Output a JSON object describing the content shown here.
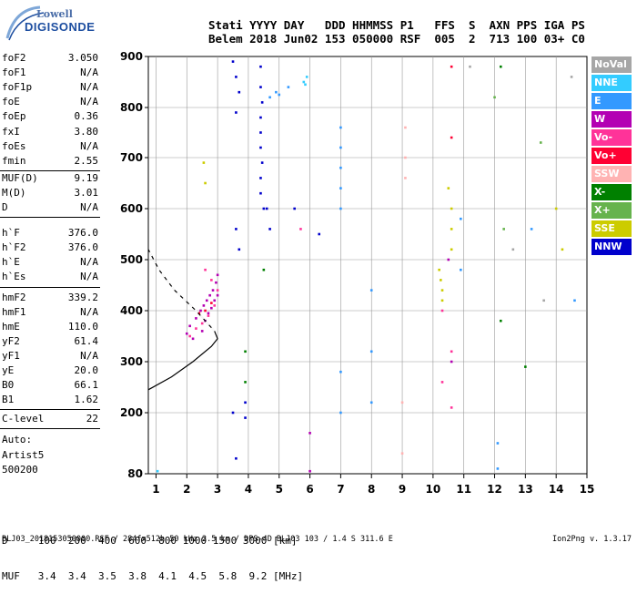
{
  "logo": {
    "line1": "Lowell",
    "line2": "DIGISONDE"
  },
  "header": {
    "line1": "Stati YYYY DAY   DDD HHMMSS P1   FFS  S  AXN PPS IGA PS",
    "line2": "Belem 2018 Jun02 153 050000 RSF  005  2  713 100 03+ C0"
  },
  "params_group1": [
    {
      "name": "foF2",
      "value": "3.050"
    },
    {
      "name": "foF1",
      "value": "N/A"
    },
    {
      "name": "foF1p",
      "value": "N/A"
    },
    {
      "name": "foE",
      "value": "N/A"
    },
    {
      "name": "foEp",
      "value": "0.36"
    },
    {
      "name": "fxI",
      "value": "3.80"
    },
    {
      "name": "foEs",
      "value": "N/A"
    },
    {
      "name": "fmin",
      "value": "2.55"
    }
  ],
  "params_group2": [
    {
      "name": "MUF(D)",
      "value": "9.19"
    },
    {
      "name": "M(D)",
      "value": "3.01"
    },
    {
      "name": "D",
      "value": "N/A"
    }
  ],
  "params_group3": [
    {
      "name": "h`F",
      "value": "376.0"
    },
    {
      "name": "h`F2",
      "value": "376.0"
    },
    {
      "name": "h`E",
      "value": "N/A"
    },
    {
      "name": "h`Es",
      "value": "N/A"
    }
  ],
  "params_group4": [
    {
      "name": "hmF2",
      "value": "339.2"
    },
    {
      "name": "hmF1",
      "value": "N/A"
    },
    {
      "name": "hmE",
      "value": "110.0"
    },
    {
      "name": "yF2",
      "value": "61.4"
    },
    {
      "name": "yF1",
      "value": "N/A"
    },
    {
      "name": "yE",
      "value": "20.0"
    },
    {
      "name": "B0",
      "value": "66.1"
    },
    {
      "name": "B1",
      "value": "1.62"
    }
  ],
  "clevel": {
    "name": "C-level",
    "value": "22"
  },
  "autoscaling": {
    "line1": "Auto:",
    "line2": "Artist5",
    "line3": "500200"
  },
  "legend": [
    {
      "label": "NoVal",
      "color": "#a6a6a6"
    },
    {
      "label": "NNE",
      "color": "#33ccff"
    },
    {
      "label": "E",
      "color": "#3399ff"
    },
    {
      "label": "W",
      "color": "#b300b3"
    },
    {
      "label": "Vo-",
      "color": "#ff3399"
    },
    {
      "label": "Vo+",
      "color": "#ff0033"
    },
    {
      "label": "SSW",
      "color": "#ffb3b3"
    },
    {
      "label": "X-",
      "color": "#008000"
    },
    {
      "label": "X+",
      "color": "#66b34d"
    },
    {
      "label": "SSE",
      "color": "#cccc00"
    },
    {
      "label": "NNW",
      "color": "#0000cc"
    }
  ],
  "distance_table": {
    "line1": "D     100  200  400  600  800 1000 1500 3000 [km]",
    "line2": "MUF   3.4  3.4  3.5  3.8  4.1  4.5  5.8  9.2 [MHz]"
  },
  "footer": {
    "left": "BLJ03_2018153050000.RSF / 284fx512h 50 kHz 2.5 km / DPS-4D BLJ03 103 / 1.4 S 311.6 E",
    "right": "Ion2Png v. 1.3.17"
  },
  "chart_data": {
    "type": "scatter",
    "title": "",
    "xlabel": "",
    "ylabel": "",
    "x_unit": "MHz",
    "y_unit": "km",
    "xlim": [
      0.75,
      15
    ],
    "ylim": [
      80,
      900
    ],
    "x_ticks": [
      1,
      2,
      3,
      4,
      5,
      6,
      7,
      8,
      9,
      10,
      11,
      12,
      13,
      14,
      15
    ],
    "y_ticks": [
      80,
      200,
      300,
      400,
      500,
      600,
      700,
      800,
      900
    ],
    "y_scale": "reciprocal-like (ionogram)",
    "grid": true,
    "legend_position": "right",
    "series": [
      {
        "name": "W",
        "color": "#b300b3",
        "points": [
          [
            2.0,
            355
          ],
          [
            2.1,
            370
          ],
          [
            2.3,
            385
          ],
          [
            2.45,
            400
          ],
          [
            2.55,
            410
          ],
          [
            2.65,
            420
          ],
          [
            2.75,
            430
          ],
          [
            2.85,
            440
          ],
          [
            2.95,
            455
          ],
          [
            3.0,
            470
          ],
          [
            2.6,
            380
          ],
          [
            2.7,
            395
          ],
          [
            2.8,
            405
          ],
          [
            2.9,
            420
          ],
          [
            3.0,
            430
          ],
          [
            2.2,
            345
          ],
          [
            2.5,
            360
          ],
          [
            6.0,
            85
          ],
          [
            6.0,
            160
          ],
          [
            10.6,
            300
          ],
          [
            10.5,
            500
          ]
        ]
      },
      {
        "name": "Vo-",
        "color": "#ff3399",
        "points": [
          [
            2.1,
            350
          ],
          [
            2.3,
            365
          ],
          [
            2.5,
            375
          ],
          [
            2.7,
            390
          ],
          [
            2.9,
            410
          ],
          [
            3.0,
            440
          ],
          [
            2.8,
            460
          ],
          [
            2.6,
            480
          ],
          [
            10.3,
            260
          ],
          [
            10.3,
            400
          ],
          [
            10.6,
            320
          ],
          [
            10.6,
            210
          ],
          [
            5.7,
            560
          ]
        ]
      },
      {
        "name": "Vo+",
        "color": "#ff0033",
        "points": [
          [
            2.4,
            395
          ],
          [
            2.6,
            400
          ],
          [
            2.8,
            415
          ],
          [
            10.6,
            880
          ],
          [
            10.6,
            740
          ]
        ]
      },
      {
        "name": "NNW",
        "color": "#0000cc",
        "points": [
          [
            3.5,
            890
          ],
          [
            3.6,
            860
          ],
          [
            3.7,
            830
          ],
          [
            3.6,
            790
          ],
          [
            4.4,
            880
          ],
          [
            4.4,
            840
          ],
          [
            4.45,
            810
          ],
          [
            4.4,
            780
          ],
          [
            4.4,
            750
          ],
          [
            4.4,
            720
          ],
          [
            4.45,
            690
          ],
          [
            4.4,
            660
          ],
          [
            4.4,
            630
          ],
          [
            4.5,
            600
          ],
          [
            3.6,
            560
          ],
          [
            3.7,
            520
          ],
          [
            4.6,
            600
          ],
          [
            4.7,
            560
          ],
          [
            5.5,
            600
          ],
          [
            6.3,
            550
          ],
          [
            3.9,
            220
          ],
          [
            3.9,
            190
          ],
          [
            3.5,
            200
          ],
          [
            3.6,
            110
          ]
        ]
      },
      {
        "name": "E",
        "color": "#3399ff",
        "points": [
          [
            4.7,
            820
          ],
          [
            4.9,
            830
          ],
          [
            5.0,
            825
          ],
          [
            5.3,
            840
          ],
          [
            7.0,
            760
          ],
          [
            7.0,
            720
          ],
          [
            7.0,
            680
          ],
          [
            7.0,
            640
          ],
          [
            7.0,
            600
          ],
          [
            7.0,
            280
          ],
          [
            7.0,
            200
          ],
          [
            8.0,
            440
          ],
          [
            8.0,
            320
          ],
          [
            8.0,
            220
          ],
          [
            10.9,
            580
          ],
          [
            10.9,
            480
          ],
          [
            12.1,
            140
          ],
          [
            12.1,
            90
          ],
          [
            13.2,
            560
          ],
          [
            14.6,
            420
          ]
        ]
      },
      {
        "name": "NNE",
        "color": "#33ccff",
        "points": [
          [
            5.8,
            850
          ],
          [
            5.9,
            860
          ],
          [
            5.85,
            845
          ],
          [
            1.05,
            85
          ]
        ]
      },
      {
        "name": "SSW",
        "color": "#ffb3b3",
        "points": [
          [
            9.1,
            760
          ],
          [
            9.1,
            700
          ],
          [
            9.1,
            660
          ],
          [
            9.0,
            120
          ],
          [
            9.0,
            220
          ]
        ]
      },
      {
        "name": "X-",
        "color": "#008000",
        "points": [
          [
            3.9,
            260
          ],
          [
            3.9,
            320
          ],
          [
            4.5,
            480
          ],
          [
            12.2,
            880
          ],
          [
            12.2,
            380
          ],
          [
            13.0,
            290
          ]
        ]
      },
      {
        "name": "X+",
        "color": "#66b34d",
        "points": [
          [
            12.0,
            820
          ],
          [
            13.5,
            730
          ],
          [
            12.3,
            560
          ]
        ]
      },
      {
        "name": "SSE",
        "color": "#cccc00",
        "points": [
          [
            2.55,
            690
          ],
          [
            2.6,
            650
          ],
          [
            10.2,
            480
          ],
          [
            10.25,
            460
          ],
          [
            10.3,
            440
          ],
          [
            10.3,
            420
          ],
          [
            10.6,
            520
          ],
          [
            10.6,
            560
          ],
          [
            10.6,
            600
          ],
          [
            10.5,
            640
          ],
          [
            14.0,
            600
          ],
          [
            14.2,
            520
          ]
        ]
      },
      {
        "name": "NoVal",
        "color": "#a6a6a6",
        "points": [
          [
            11.2,
            880
          ],
          [
            12.6,
            520
          ],
          [
            13.6,
            420
          ],
          [
            14.5,
            860
          ]
        ]
      }
    ],
    "profile_curve": [
      [
        0.75,
        245
      ],
      [
        1.5,
        270
      ],
      [
        2.2,
        300
      ],
      [
        2.8,
        330
      ],
      [
        3.0,
        345
      ],
      [
        2.9,
        360
      ],
      [
        2.6,
        380
      ],
      [
        2.3,
        400
      ],
      [
        1.6,
        440
      ],
      [
        1.1,
        480
      ],
      [
        0.75,
        520
      ]
    ]
  }
}
